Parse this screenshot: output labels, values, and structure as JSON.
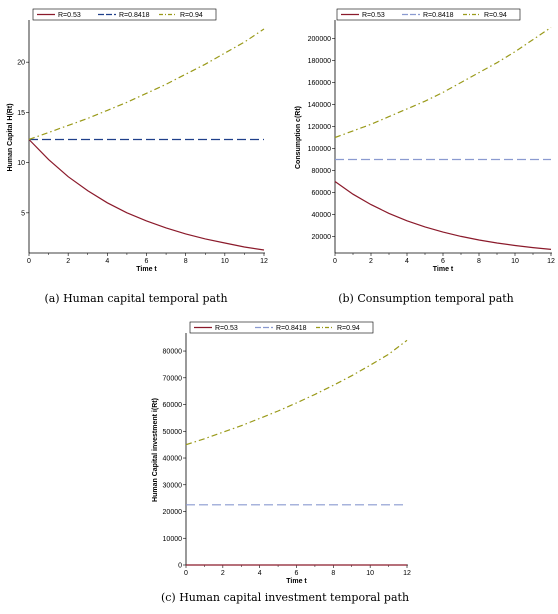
{
  "colors": {
    "r053": "#8b1a2b",
    "r08418": "#1f3f8a",
    "r094": "#9a9a1a",
    "r08418_b": "#8a9ad0"
  },
  "chart_data": [
    {
      "type": "line",
      "caption": "(a) Human capital temporal path",
      "xlabel": "Time t",
      "ylabel": "Human Capital H(Rt)",
      "xlim": [
        0,
        12
      ],
      "ylim": [
        1,
        24
      ],
      "xticks": [
        0,
        2,
        4,
        6,
        8,
        10,
        12
      ],
      "yticks": [
        5,
        10,
        15,
        20
      ],
      "ytick_labels": [
        "5",
        "10",
        "15",
        "20"
      ],
      "legend": [
        "R=0.53",
        "R=0.8418",
        "R=0.94"
      ],
      "series": [
        {
          "name": "R=0.53",
          "style": "solid",
          "color": "#8b1a2b",
          "x": [
            0,
            1,
            2,
            3,
            4,
            5,
            6,
            7,
            8,
            9,
            10,
            11,
            12
          ],
          "y": [
            12.3,
            10.3,
            8.6,
            7.2,
            6.0,
            5.0,
            4.2,
            3.5,
            2.9,
            2.4,
            2.0,
            1.6,
            1.3
          ]
        },
        {
          "name": "R=0.8418",
          "style": "dash",
          "color": "#1f3f8a",
          "x": [
            0,
            12
          ],
          "y": [
            12.3,
            12.3
          ]
        },
        {
          "name": "R=0.94",
          "style": "dashdot",
          "color": "#9a9a1a",
          "x": [
            0,
            1,
            2,
            3,
            4,
            5,
            6,
            7,
            8,
            9,
            10,
            11,
            12
          ],
          "y": [
            12.3,
            13.0,
            13.7,
            14.4,
            15.2,
            16.0,
            16.9,
            17.8,
            18.8,
            19.8,
            20.9,
            22.0,
            23.3
          ]
        }
      ]
    },
    {
      "type": "line",
      "caption": "(b) Consumption temporal path",
      "xlabel": "Time t",
      "ylabel": "Consumption c(Rt)",
      "xlim": [
        0,
        12
      ],
      "ylim": [
        5000,
        215000
      ],
      "xticks": [
        0,
        2,
        4,
        6,
        8,
        10,
        12
      ],
      "yticks": [
        20000,
        40000,
        60000,
        80000,
        100000,
        120000,
        140000,
        160000,
        180000,
        200000
      ],
      "ytick_labels": [
        "20000",
        "40000",
        "60000",
        "80000",
        "100000",
        "120000",
        "140000",
        "160000",
        "180000",
        "200000"
      ],
      "legend": [
        "R=0.53",
        "R=0.8418",
        "R=0.94"
      ],
      "series": [
        {
          "name": "R=0.53",
          "style": "solid",
          "color": "#8b1a2b",
          "x": [
            0,
            1,
            2,
            3,
            4,
            5,
            6,
            7,
            8,
            9,
            10,
            11,
            12
          ],
          "y": [
            70000,
            58500,
            49000,
            41000,
            34300,
            28700,
            24000,
            20100,
            16800,
            14100,
            11800,
            9900,
            8300
          ]
        },
        {
          "name": "R=0.8418",
          "style": "dash",
          "color": "#8a9ad0",
          "x": [
            0,
            12
          ],
          "y": [
            90000,
            90000
          ]
        },
        {
          "name": "R=0.94",
          "style": "dashdot",
          "color": "#9a9a1a",
          "x": [
            0,
            1,
            2,
            3,
            4,
            5,
            6,
            7,
            8,
            9,
            10,
            11,
            12
          ],
          "y": [
            110000,
            116000,
            122000,
            129000,
            136000,
            143000,
            151000,
            160000,
            169000,
            178000,
            188000,
            199000,
            210000
          ]
        }
      ]
    },
    {
      "type": "line",
      "caption": "(c) Human capital investment temporal path",
      "xlabel": "Time t",
      "ylabel": "Human Capital investment i(Rt)",
      "xlim": [
        0,
        12
      ],
      "ylim": [
        0,
        86000
      ],
      "xticks": [
        0,
        2,
        4,
        6,
        8,
        10,
        12
      ],
      "yticks": [
        0,
        10000,
        20000,
        30000,
        40000,
        50000,
        60000,
        70000,
        80000
      ],
      "ytick_labels": [
        "0",
        "10000",
        "20000",
        "30000",
        "40000",
        "50000",
        "60000",
        "70000",
        "80000"
      ],
      "legend": [
        "R=0.53",
        "R=0.8418",
        "R=0.94"
      ],
      "series": [
        {
          "name": "R=0.53",
          "style": "solid",
          "color": "#8b1a2b",
          "x": [
            0,
            12
          ],
          "y": [
            0,
            0
          ]
        },
        {
          "name": "R=0.8418",
          "style": "dash",
          "color": "#8a9ad0",
          "x": [
            0,
            12
          ],
          "y": [
            22500,
            22500
          ]
        },
        {
          "name": "R=0.94",
          "style": "dashdot",
          "color": "#9a9a1a",
          "x": [
            0,
            1,
            2,
            3,
            4,
            5,
            6,
            7,
            8,
            9,
            10,
            11,
            12
          ],
          "y": [
            45000,
            47200,
            49600,
            52100,
            54800,
            57600,
            60600,
            63800,
            67200,
            70800,
            74700,
            78800,
            84000
          ]
        }
      ]
    }
  ]
}
